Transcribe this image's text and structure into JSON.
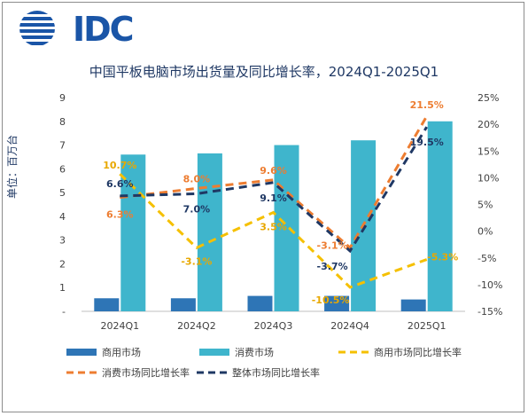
{
  "logo": {
    "text": "IDC"
  },
  "chart_data": {
    "type": "bar",
    "title": "中国平板电脑市场出货量及同比增长率，2024Q1-2025Q1",
    "ylabel": "单位：百万台",
    "categories": [
      "2024Q1",
      "2024Q2",
      "2024Q3",
      "2024Q4",
      "2025Q1"
    ],
    "ylim": [
      0,
      9
    ],
    "y_ticks": [
      "-",
      "1",
      "2",
      "3",
      "4",
      "5",
      "6",
      "7",
      "8",
      "9"
    ],
    "y2lim": [
      -15,
      25
    ],
    "y2_ticks": [
      "-15%",
      "-10%",
      "-5%",
      "0%",
      "5%",
      "10%",
      "15%",
      "20%",
      "25%"
    ],
    "grid": false,
    "legend_position": "bottom",
    "series": [
      {
        "name": "商用市场",
        "kind": "bar",
        "axis": "left",
        "color": "#2e75b6",
        "values": [
          0.55,
          0.55,
          0.65,
          0.65,
          0.5
        ]
      },
      {
        "name": "消费市场",
        "kind": "bar",
        "axis": "left",
        "color": "#3fb5cc",
        "values": [
          6.6,
          6.65,
          7.0,
          7.2,
          8.0
        ]
      },
      {
        "name": "商用市场同比增长率",
        "kind": "line",
        "axis": "right",
        "color": "#f5c000",
        "dash": "dashed",
        "values": [
          10.7,
          -3.1,
          3.5,
          -10.5,
          -5.3
        ],
        "labels": [
          "10.7%",
          "-3.1%",
          "3.5%",
          "-10.5%",
          "-5.3%"
        ],
        "label_color": "#e8a800"
      },
      {
        "name": "消费市场同比增长率",
        "kind": "line",
        "axis": "right",
        "color": "#ed7d31",
        "dash": "dashed",
        "values": [
          6.3,
          8.0,
          9.6,
          -3.1,
          21.5
        ],
        "labels": [
          "6.3%",
          "8.0%",
          "9.6%",
          "-3.1%",
          "21.5%"
        ],
        "label_color": "#ed7d31"
      },
      {
        "name": "整体市场同比增长率",
        "kind": "line",
        "axis": "right",
        "color": "#1f3864",
        "dash": "dashed",
        "values": [
          6.6,
          7.0,
          9.1,
          -3.7,
          19.5
        ],
        "labels": [
          "6.6%",
          "7.0%",
          "9.1%",
          "-3.7%",
          "19.5%"
        ],
        "label_color": "#1f3864"
      }
    ]
  }
}
